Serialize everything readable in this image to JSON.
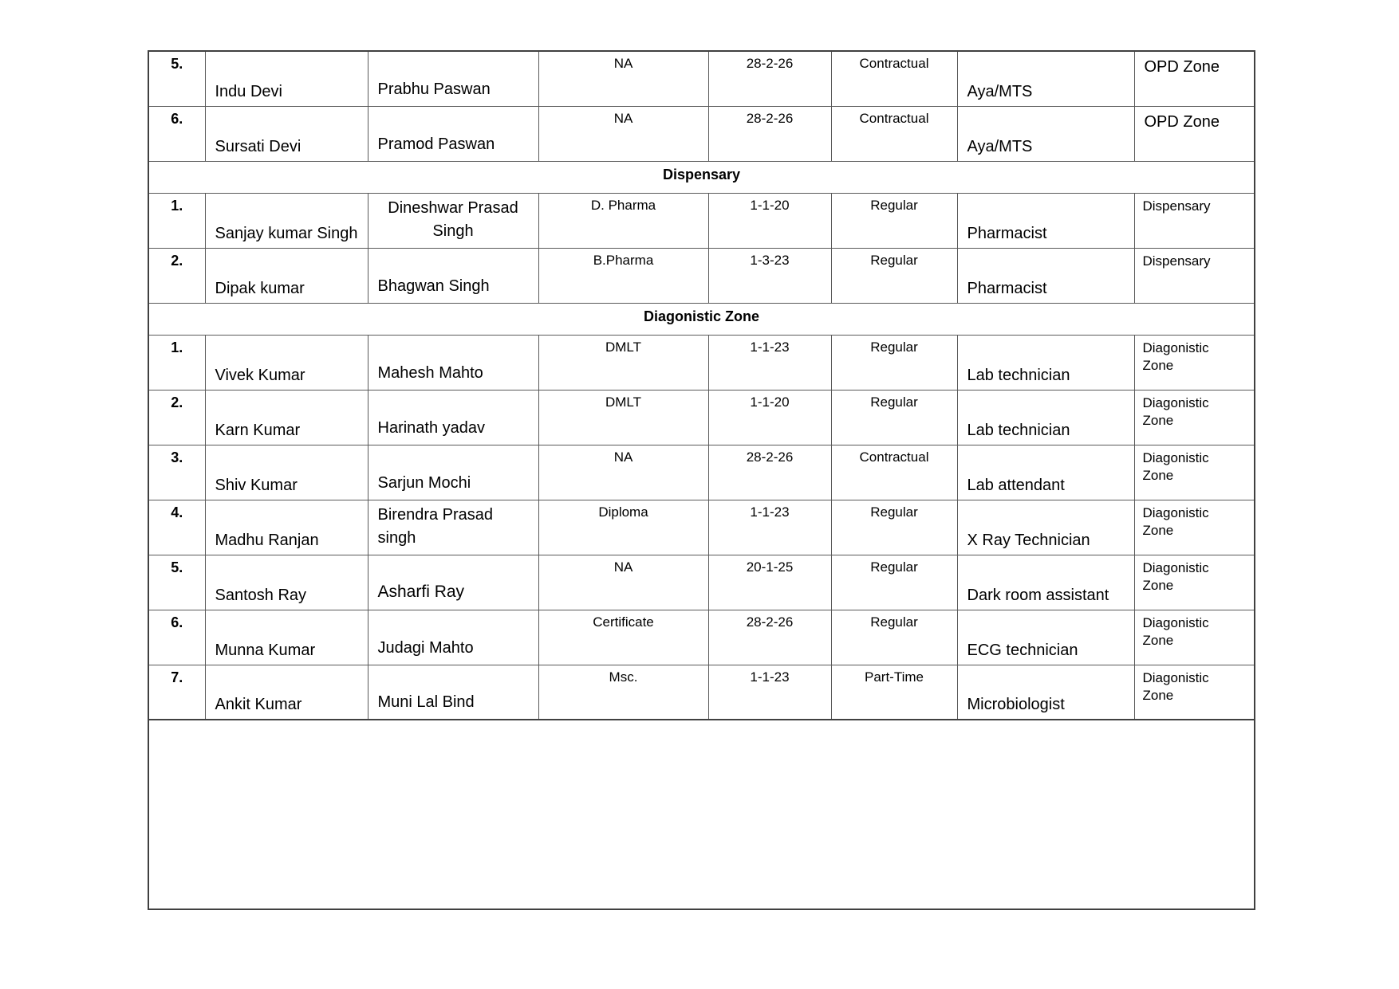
{
  "table": {
    "sections": [
      {
        "title": "",
        "rows": [
          {
            "sl": "5.",
            "name": "Indu Devi",
            "father": "Prabhu Paswan",
            "qualification": "NA",
            "join_date": "28-2-26",
            "employment_type": "Contractual",
            "designation": "Aya/MTS",
            "zone": "OPD Zone",
            "zone_large": true
          },
          {
            "sl": "6.",
            "name": "Sursati Devi",
            "father": "Pramod Paswan",
            "qualification": "NA",
            "join_date": "28-2-26",
            "employment_type": "Contractual",
            "designation": "Aya/MTS",
            "zone": "OPD Zone",
            "zone_large": true
          }
        ]
      },
      {
        "title": "Dispensary",
        "rows": [
          {
            "sl": "1.",
            "name": "Sanjay kumar Singh",
            "father": "Dineshwar Prasad Singh",
            "father_center": true,
            "qualification": "D. Pharma",
            "join_date": "1-1-20",
            "employment_type": "Regular",
            "designation": "Pharmacist",
            "zone": "Dispensary"
          },
          {
            "sl": "2.",
            "name": "Dipak kumar",
            "father": "Bhagwan Singh",
            "qualification": "B.Pharma",
            "join_date": "1-3-23",
            "employment_type": "Regular",
            "designation": "Pharmacist",
            "zone": "Dispensary"
          }
        ]
      },
      {
        "title": "Diagonistic Zone",
        "rows": [
          {
            "sl": "1.",
            "name": "Vivek Kumar",
            "father": "Mahesh Mahto",
            "qualification": "DMLT",
            "join_date": "1-1-23",
            "employment_type": "Regular",
            "designation": "Lab technician",
            "zone": "Diagonistic Zone"
          },
          {
            "sl": "2.",
            "name": "Karn Kumar",
            "father": "Harinath yadav",
            "qualification": "DMLT",
            "join_date": "1-1-20",
            "employment_type": "Regular",
            "designation": "Lab technician",
            "zone": "Diagonistic Zone"
          },
          {
            "sl": "3.",
            "name": "Shiv Kumar",
            "father": "Sarjun Mochi",
            "qualification": "NA",
            "join_date": "28-2-26",
            "employment_type": "Contractual",
            "designation": "Lab attendant",
            "zone": "Diagonistic Zone"
          },
          {
            "sl": "4.",
            "name": "Madhu Ranjan",
            "father": "Birendra Prasad singh",
            "qualification": "Diploma",
            "join_date": "1-1-23",
            "employment_type": "Regular",
            "designation": "X Ray Technician",
            "zone": "Diagonistic Zone"
          },
          {
            "sl": "5.",
            "name": "Santosh Ray",
            "father": "Asharfi Ray",
            "father_large": true,
            "qualification": "NA",
            "join_date": "20-1-25",
            "employment_type": "Regular",
            "designation": "Dark room assistant",
            "zone": "Diagonistic Zone"
          },
          {
            "sl": "6.",
            "name": "Munna Kumar",
            "father": "Judagi Mahto",
            "qualification": "Certificate",
            "join_date": "28-2-26",
            "employment_type": "Regular",
            "designation": "ECG technician",
            "zone": "Diagonistic Zone"
          },
          {
            "sl": "7.",
            "name": "Ankit Kumar",
            "father": "Muni Lal Bind",
            "qualification": "Msc.",
            "join_date": "1-1-23",
            "employment_type": "Part-Time",
            "designation": "Microbiologist",
            "zone": "Diagonistic Zone"
          }
        ]
      }
    ]
  }
}
